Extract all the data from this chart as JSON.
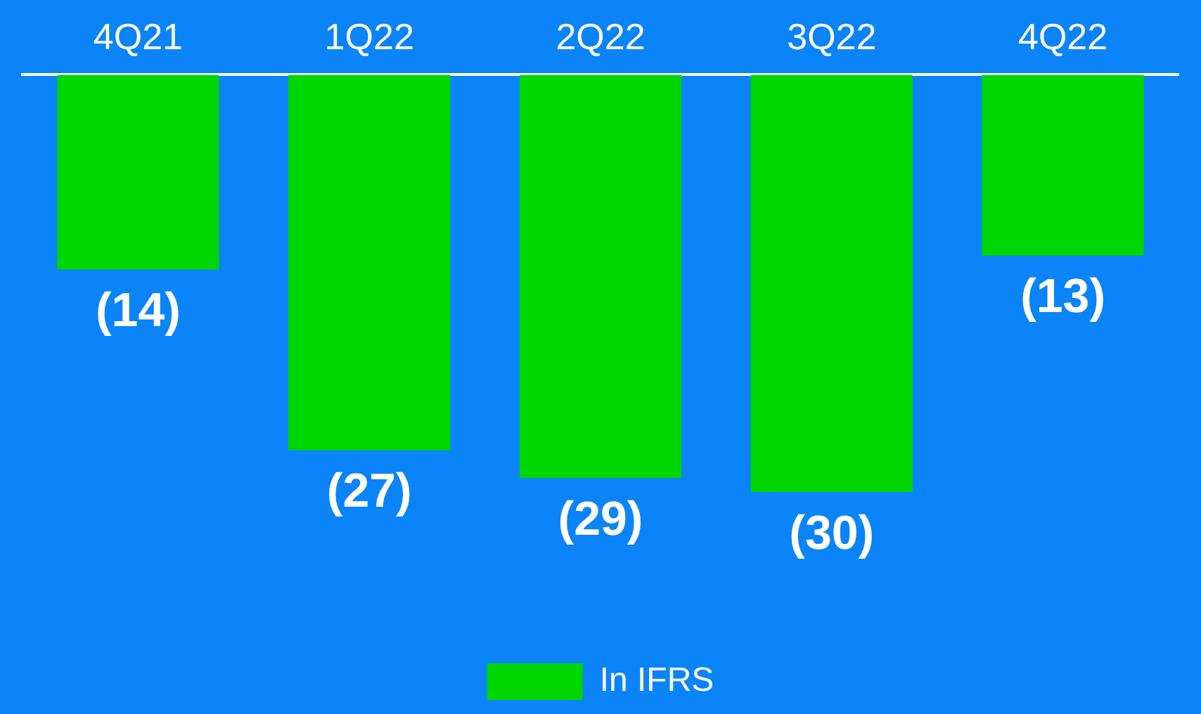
{
  "chart_data": {
    "type": "bar",
    "categories": [
      "4Q21",
      "1Q22",
      "2Q22",
      "3Q22",
      "4Q22"
    ],
    "series": [
      {
        "name": "In IFRS",
        "color": "#00d600",
        "values": [
          -14,
          -27,
          -29,
          -30,
          -13
        ],
        "value_labels": [
          "(14)",
          "(27)",
          "(29)",
          "(30)",
          "(13)"
        ]
      }
    ],
    "tick_labels": "x",
    "legend": "bottom",
    "grid": false
  }
}
